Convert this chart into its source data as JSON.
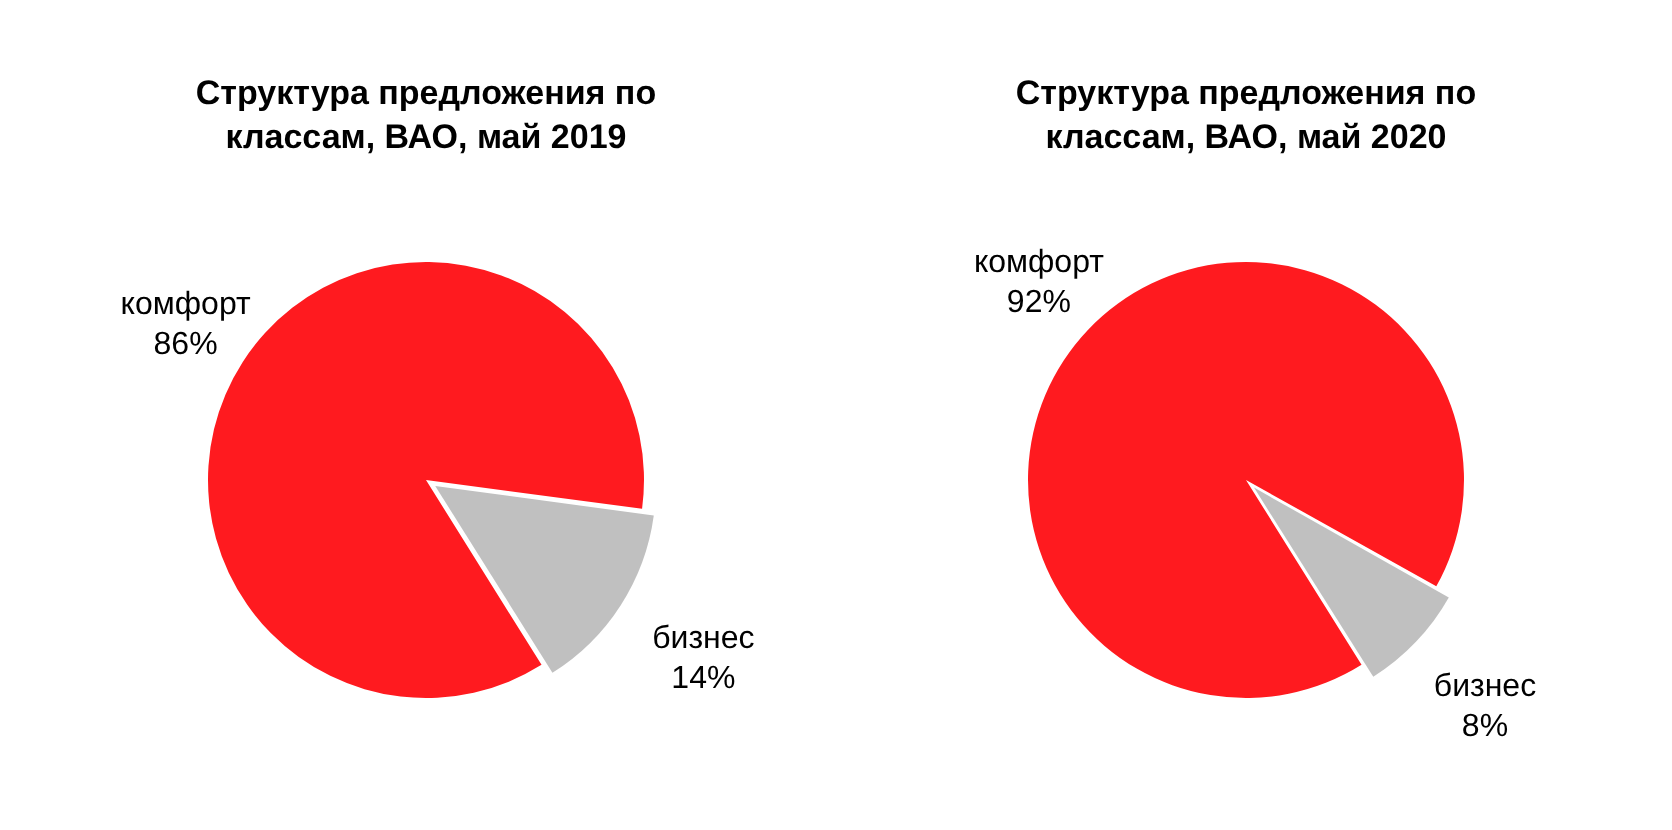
{
  "chart_data": [
    {
      "type": "pie",
      "title": "Структура предложения по классам, ВАО, май 2019",
      "categories": [
        "комфорт",
        "бизнес"
      ],
      "values": [
        86,
        14
      ],
      "colors": [
        "#ff1a1f",
        "#c0c0c0"
      ],
      "value_labels": [
        "86%",
        "14%"
      ]
    },
    {
      "type": "pie",
      "title": "Структура предложения по классам, ВАО, май 2020",
      "categories": [
        "комфорт",
        "бизнес"
      ],
      "values": [
        92,
        8
      ],
      "colors": [
        "#ff1a1f",
        "#c0c0c0"
      ],
      "value_labels": [
        "92%",
        "8%"
      ]
    }
  ]
}
